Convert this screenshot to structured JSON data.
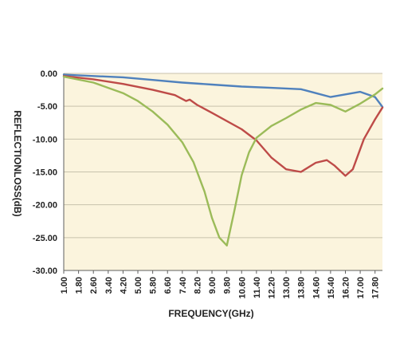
{
  "colors": {
    "plot_background": "#fbf4dd",
    "grid": "#c8c2ad",
    "axis": "#5f5f5f",
    "series_blue": "#4f81bd",
    "series_red": "#be4b48",
    "series_green": "#9bbb59"
  },
  "chart_data": {
    "type": "line",
    "title": "",
    "xlabel": "FREQUENCY(GHz)",
    "ylabel": "REFLECTIONLOSS(dB)",
    "legend": "none",
    "grid": "horizontal",
    "xlim": [
      1.0,
      18.2
    ],
    "ylim": [
      -30,
      0
    ],
    "x_ticks": [
      "1.00",
      "1.80",
      "2.60",
      "3.40",
      "4.20",
      "5.00",
      "5.80",
      "6.60",
      "7.40",
      "8.20",
      "9.00",
      "9.80",
      "10.60",
      "11.40",
      "12.20",
      "13.00",
      "13.80",
      "14.60",
      "15.40",
      "16.20",
      "17.00",
      "17.80"
    ],
    "y_ticks": [
      "0.00",
      "-5.00",
      "-10.00",
      "-15.00",
      "-20.00",
      "-25.00",
      "-30.00"
    ],
    "series": [
      {
        "color": "#4f81bd",
        "x": [
          1.0,
          2.6,
          4.2,
          5.8,
          7.4,
          9.0,
          10.6,
          12.2,
          13.8,
          14.6,
          15.4,
          16.2,
          17.0,
          17.8,
          18.2
        ],
        "y": [
          -0.2,
          -0.4,
          -0.6,
          -1.0,
          -1.4,
          -1.7,
          -2.0,
          -2.2,
          -2.4,
          -3.0,
          -3.6,
          -3.2,
          -2.8,
          -3.6,
          -5.1
        ]
      },
      {
        "color": "#be4b48",
        "x": [
          1.0,
          2.6,
          4.2,
          5.8,
          7.0,
          7.6,
          7.8,
          8.2,
          9.0,
          10.6,
          11.4,
          12.2,
          13.0,
          13.8,
          14.6,
          15.2,
          15.6,
          16.2,
          16.6,
          17.2,
          17.8,
          18.2
        ],
        "y": [
          -0.4,
          -0.9,
          -1.6,
          -2.5,
          -3.3,
          -4.2,
          -4.0,
          -4.8,
          -6.0,
          -8.5,
          -10.2,
          -12.8,
          -14.6,
          -15.0,
          -13.6,
          -13.2,
          -14.0,
          -15.6,
          -14.6,
          -10.0,
          -7.0,
          -5.2
        ]
      },
      {
        "color": "#9bbb59",
        "x": [
          1.0,
          2.6,
          4.2,
          5.0,
          5.8,
          6.6,
          7.4,
          8.0,
          8.6,
          9.0,
          9.4,
          9.8,
          10.2,
          10.6,
          11.0,
          11.4,
          12.2,
          13.0,
          13.8,
          14.6,
          15.4,
          16.2,
          17.0,
          17.8,
          18.2
        ],
        "y": [
          -0.5,
          -1.4,
          -3.0,
          -4.2,
          -5.8,
          -7.8,
          -10.5,
          -13.5,
          -18.0,
          -22.0,
          -25.0,
          -26.2,
          -21.0,
          -15.5,
          -12.0,
          -9.8,
          -8.0,
          -6.8,
          -5.5,
          -4.5,
          -4.8,
          -5.8,
          -4.6,
          -3.2,
          -2.3
        ]
      }
    ]
  }
}
